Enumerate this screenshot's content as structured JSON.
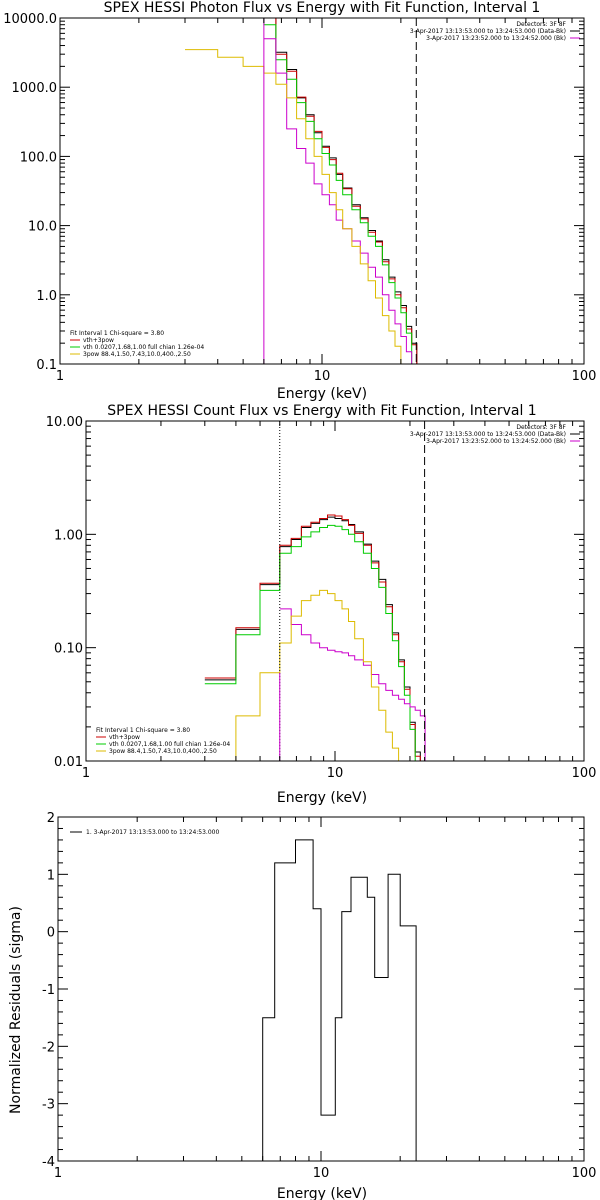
{
  "chart_data": [
    {
      "type": "line",
      "panel": "photon-flux",
      "title": "SPEX HESSI Photon Flux vs Energy with Fit Function, Interval 1",
      "xlabel": "Energy (keV)",
      "ylabel": "",
      "xscale": "log",
      "yscale": "log",
      "xlim": [
        1,
        100
      ],
      "ylim": [
        0.1,
        10000
      ],
      "xticks": [
        {
          "v": 1,
          "label": "1"
        },
        {
          "v": 10,
          "label": "10"
        },
        {
          "v": 100,
          "label": "100"
        }
      ],
      "yticks": [
        {
          "v": 0.1,
          "label": "0.1"
        },
        {
          "v": 1,
          "label": "1.0"
        },
        {
          "v": 10,
          "label": "10.0"
        },
        {
          "v": 100,
          "label": "100.0"
        },
        {
          "v": 1000,
          "label": "1000.0"
        },
        {
          "v": 10000,
          "label": "10000.0"
        }
      ],
      "vlines": [
        {
          "x": 6.0,
          "style": "solid",
          "color": "#cc00cc"
        },
        {
          "x": 22.9,
          "style": "dashed",
          "color": "#000000"
        }
      ],
      "legend_top": {
        "lines": [
          {
            "text": "Detectors: 3F 8F",
            "color": ""
          },
          {
            "text": "3-Apr-2017 13:13:53.000 to 13:24:53.000 (Data-Bk)",
            "color": "#000000"
          },
          {
            "text": "3-Apr-2017 13:23:52.000 to 13:24:52.000 (Bk)",
            "color": "#cc00cc"
          }
        ]
      },
      "legend_bottom": {
        "lines": [
          {
            "text": "Fit Interval 1    Chi-square = 3.80",
            "color": ""
          },
          {
            "text": "vth+3pow",
            "color": "#cc0000"
          },
          {
            "text": "vth 0.0207,1.68,1.00  full chian 1.26e-04",
            "color": "#00cc00"
          },
          {
            "text": "3pow 88.4,1.50,7.43,10.0,400.,2.50",
            "color": "#ddbb00"
          }
        ]
      },
      "series": [
        {
          "color": "#000000",
          "edges": [
            6.0,
            6.67,
            7.33,
            8.0,
            8.67,
            9.33,
            10.0,
            10.67,
            11.33,
            12.0,
            13.0,
            14.0,
            15.0,
            16.0,
            17.0,
            18.0,
            19.0,
            20.0,
            21.0,
            22.0,
            23.0
          ],
          "values": [
            10000,
            3200,
            1800,
            700,
            400,
            220,
            140,
            95,
            55,
            35,
            20,
            13,
            8.5,
            6.0,
            3.2,
            1.8,
            1.1,
            0.7,
            0.35,
            0.2
          ]
        },
        {
          "color": "#cc0000",
          "edges": [
            6.0,
            6.67,
            7.33,
            8.0,
            8.67,
            9.33,
            10.0,
            10.67,
            11.33,
            12.0,
            13.0,
            14.0,
            15.0,
            16.0,
            17.0,
            18.0,
            19.0,
            20.0,
            21.0,
            22.0,
            23.0
          ],
          "values": [
            10000,
            3000,
            1700,
            720,
            380,
            230,
            135,
            90,
            57,
            34,
            19,
            12.5,
            8.0,
            5.8,
            3.0,
            1.7,
            1.0,
            0.65,
            0.32,
            0.19
          ]
        },
        {
          "color": "#00cc00",
          "edges": [
            3.0,
            5.0,
            6.0,
            6.67,
            7.33,
            8.0,
            8.67,
            9.33,
            10.0,
            10.67,
            11.33,
            12.0,
            13.0,
            14.0,
            15.0,
            16.0,
            17.0,
            18.0,
            19.0,
            20.0,
            21.0,
            22.0,
            23.0
          ],
          "values": [
            10000,
            10000,
            8000,
            2500,
            1300,
            600,
            320,
            180,
            110,
            75,
            45,
            28,
            17,
            11,
            7.0,
            5.0,
            2.7,
            1.5,
            0.9,
            0.55,
            0.28,
            0.1
          ]
        },
        {
          "color": "#cc00cc",
          "edges": [
            6.0,
            6.67,
            7.33,
            8.0,
            8.67,
            9.33,
            10.0,
            10.67,
            11.33,
            12.0,
            13.0,
            14.0,
            15.0,
            16.0,
            17.0,
            18.0,
            19.0,
            20.0,
            21.0,
            22.0,
            23.0
          ],
          "values": [
            5000,
            1600,
            250,
            130,
            80,
            40,
            28,
            20,
            12,
            9,
            6,
            4,
            2.5,
            1.8,
            1.0,
            0.6,
            0.38,
            0.25,
            0.15,
            0.1
          ]
        },
        {
          "color": "#ddbb00",
          "edges": [
            3.0,
            4.0,
            5.0,
            6.0,
            6.67,
            7.33,
            8.0,
            8.67,
            9.33,
            10.0,
            10.67,
            11.33,
            12.0,
            13.0,
            14.0,
            15.0,
            16.0,
            17.0,
            18.0,
            19.0,
            20.0
          ],
          "values": [
            3500,
            2700,
            2000,
            1600,
            1100,
            700,
            350,
            180,
            100,
            55,
            30,
            17,
            9,
            5,
            2.8,
            1.6,
            0.9,
            0.5,
            0.3,
            0.18
          ]
        }
      ]
    },
    {
      "type": "line",
      "panel": "count-flux",
      "title": "SPEX HESSI Count Flux vs Energy with Fit Function, Interval 1",
      "xlabel": "Energy (keV)",
      "ylabel": "",
      "xscale": "log",
      "yscale": "log",
      "xlim": [
        1,
        100
      ],
      "ylim": [
        0.01,
        10
      ],
      "xticks": [
        {
          "v": 1,
          "label": "1"
        },
        {
          "v": 10,
          "label": "10"
        },
        {
          "v": 100,
          "label": "100"
        }
      ],
      "yticks": [
        {
          "v": 0.01,
          "label": "0.01"
        },
        {
          "v": 0.1,
          "label": "0.10"
        },
        {
          "v": 1,
          "label": "1.00"
        },
        {
          "v": 10,
          "label": "10.00"
        }
      ],
      "vlines": [
        {
          "x": 6.0,
          "style": "dotted",
          "color": "#000000"
        },
        {
          "x": 6.0,
          "style": "solid",
          "color": "#cc00cc",
          "from": 0.01,
          "to": 0.06
        },
        {
          "x": 22.9,
          "style": "dashed",
          "color": "#000000"
        }
      ],
      "legend_top": {
        "lines": [
          {
            "text": "Detectors: 3F 8F",
            "color": ""
          },
          {
            "text": "3-Apr-2017 13:13:53.000 to 13:24:53.000 (Data-Bk)",
            "color": "#000000"
          },
          {
            "text": "3-Apr-2017 13:23:52.000 to 13:24:52.000 (Bk)",
            "color": "#cc00cc"
          }
        ]
      },
      "legend_bottom": {
        "lines": [
          {
            "text": "Fit Interval 1    Chi-square = 3.80",
            "color": ""
          },
          {
            "text": "vth+3pow",
            "color": "#cc0000"
          },
          {
            "text": "vth 0.0207,1.68,1.00  full chian 1.26e-04",
            "color": "#00cc00"
          },
          {
            "text": "3pow 88.4,1.50,7.43,10.0,400.,2.50",
            "color": "#ddbb00"
          }
        ]
      },
      "series": [
        {
          "color": "#000000",
          "edges": [
            3.0,
            4.0,
            5.0,
            6.0,
            6.67,
            7.33,
            8.0,
            8.67,
            9.33,
            10.0,
            10.67,
            11.33,
            12.0,
            13.0,
            14.0,
            15.0,
            16.0,
            17.0,
            18.0,
            19.0,
            20.0,
            21.0,
            22.0,
            23.0
          ],
          "values": [
            0.052,
            0.145,
            0.36,
            0.78,
            0.9,
            1.15,
            1.25,
            1.35,
            1.42,
            1.38,
            1.32,
            1.22,
            1.05,
            0.82,
            0.58,
            0.4,
            0.24,
            0.135,
            0.078,
            0.045,
            0.022,
            0.012,
            0.01
          ]
        },
        {
          "color": "#cc0000",
          "edges": [
            3.0,
            4.0,
            5.0,
            6.0,
            6.67,
            7.33,
            8.0,
            8.67,
            9.33,
            10.0,
            10.67,
            11.33,
            12.0,
            13.0,
            14.0,
            15.0,
            16.0,
            17.0,
            18.0,
            19.0,
            20.0,
            21.0,
            22.0,
            23.0
          ],
          "values": [
            0.054,
            0.15,
            0.37,
            0.8,
            0.92,
            1.18,
            1.28,
            1.38,
            1.48,
            1.45,
            1.35,
            1.2,
            1.02,
            0.8,
            0.56,
            0.38,
            0.23,
            0.13,
            0.075,
            0.043,
            0.021,
            0.011,
            0.01
          ]
        },
        {
          "color": "#00cc00",
          "edges": [
            3.0,
            4.0,
            5.0,
            6.0,
            6.67,
            7.33,
            8.0,
            8.67,
            9.33,
            10.0,
            10.67,
            11.33,
            12.0,
            13.0,
            14.0,
            15.0,
            16.0,
            17.0,
            18.0,
            19.0,
            20.0,
            21.0,
            22.0,
            23.0
          ],
          "values": [
            0.048,
            0.13,
            0.32,
            0.68,
            0.78,
            0.95,
            1.05,
            1.15,
            1.2,
            1.18,
            1.1,
            1.0,
            0.86,
            0.68,
            0.5,
            0.34,
            0.2,
            0.115,
            0.068,
            0.038,
            0.019,
            0.01,
            0.01
          ]
        },
        {
          "color": "#cc00cc",
          "edges": [
            6.0,
            6.67,
            7.33,
            8.0,
            8.67,
            9.33,
            10.0,
            10.67,
            11.33,
            12.0,
            13.0,
            14.0,
            15.0,
            16.0,
            17.0,
            18.0,
            19.0,
            20.0,
            21.0,
            22.0,
            23.0
          ],
          "values": [
            0.22,
            0.16,
            0.13,
            0.11,
            0.1,
            0.095,
            0.092,
            0.09,
            0.085,
            0.078,
            0.07,
            0.058,
            0.048,
            0.042,
            0.038,
            0.035,
            0.032,
            0.03,
            0.028,
            0.025
          ]
        },
        {
          "color": "#ddbb00",
          "edges": [
            3.0,
            4.0,
            5.0,
            6.0,
            6.67,
            7.33,
            8.0,
            8.67,
            9.33,
            10.0,
            10.67,
            11.33,
            12.0,
            13.0,
            14.0,
            15.0,
            16.0,
            17.0,
            18.0,
            19.0,
            20.0
          ],
          "values": [
            0.01,
            0.025,
            0.06,
            0.11,
            0.19,
            0.26,
            0.29,
            0.32,
            0.3,
            0.26,
            0.22,
            0.17,
            0.12,
            0.075,
            0.045,
            0.028,
            0.018,
            0.013,
            0.01,
            0.01
          ]
        }
      ]
    },
    {
      "type": "line",
      "panel": "residuals",
      "title": "",
      "xlabel": "Energy (keV)",
      "ylabel": "Normalized Residuals (sigma)",
      "xscale": "log",
      "yscale": "linear",
      "xlim": [
        1,
        100
      ],
      "ylim": [
        -4,
        2
      ],
      "xticks": [
        {
          "v": 1,
          "label": "1"
        },
        {
          "v": 10,
          "label": "10"
        },
        {
          "v": 100,
          "label": "100"
        }
      ],
      "yticks": [
        {
          "v": -4,
          "label": "-4"
        },
        {
          "v": -3,
          "label": "-3"
        },
        {
          "v": -2,
          "label": "-2"
        },
        {
          "v": -1,
          "label": "-1"
        },
        {
          "v": 0,
          "label": "0"
        },
        {
          "v": 1,
          "label": "1"
        },
        {
          "v": 2,
          "label": "2"
        }
      ],
      "vlines": [],
      "legend_top": {
        "lines": [
          {
            "text": "1.  3-Apr-2017 13:13:53.000 to 13:24:53.000",
            "color": "#000000"
          }
        ]
      },
      "legend_bottom": {
        "lines": []
      },
      "series": [
        {
          "color": "#000000",
          "edges": [
            6.0,
            6.67,
            7.33,
            8.0,
            8.67,
            9.33,
            10.0,
            10.67,
            11.33,
            12.0,
            13.0,
            14.0,
            15.0,
            16.0,
            17.0,
            18.0,
            19.0,
            20.0,
            21.0,
            22.0,
            23.0
          ],
          "values": [
            -1.5,
            1.2,
            1.2,
            1.6,
            1.6,
            0.4,
            -3.2,
            -3.2,
            -1.5,
            0.35,
            0.95,
            0.95,
            0.6,
            -0.8,
            -0.8,
            1.0,
            1.0,
            0.1,
            0.1,
            0.1
          ],
          "drop_start_to": -4,
          "drop_end_to": -4
        }
      ]
    }
  ]
}
